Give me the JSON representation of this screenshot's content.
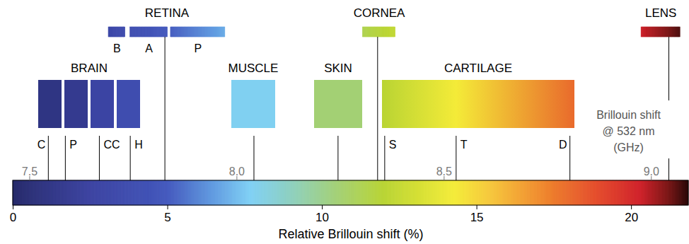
{
  "chart_data": {
    "type": "colorbar",
    "xlabel": "Relative Brillouin shift (%)",
    "xlim": [
      0,
      21.85
    ],
    "xticks": [
      0,
      5,
      10,
      15,
      20
    ],
    "x2label": "Brillouin shift\n@ 532 nm\n(GHz)",
    "x2lim": [
      7.46,
      9.09
    ],
    "x2ticks": [
      7.5,
      {
        "value": 8,
        "label": "8.0"
      },
      8.5,
      {
        "value": 9,
        "label": "9.0"
      }
    ],
    "tissues": [
      {
        "name": "BRAIN",
        "regions": [
          {
            "label": "C",
            "value": 1.14
          },
          {
            "label": "P",
            "value": 1.69
          },
          {
            "label": "CC",
            "value": 2.79
          },
          {
            "label": "H",
            "value": 3.79
          }
        ]
      },
      {
        "name": "RETINA",
        "value": 4.91,
        "regions": [
          {
            "label": "B",
            "range": [
              3.09,
              3.63
            ]
          },
          {
            "label": "A",
            "range": [
              3.79,
              5.0
            ]
          },
          {
            "label": "P",
            "range": [
              5.1,
              6.86
            ]
          }
        ]
      },
      {
        "name": "MUSCLE",
        "value": 7.79
      },
      {
        "name": "SKIN",
        "value": 10.51
      },
      {
        "name": "CORNEA",
        "value": 11.79,
        "range": [
          11.31,
          12.37
        ]
      },
      {
        "name": "CARTILAGE",
        "regions": [
          {
            "label": "S",
            "value": 12.02
          },
          {
            "label": "T",
            "value": 14.33
          },
          {
            "label": "D",
            "value": 18.01
          }
        ]
      },
      {
        "name": "LENS",
        "value": 21.21,
        "range": [
          20.32,
          21.58
        ]
      }
    ]
  }
}
